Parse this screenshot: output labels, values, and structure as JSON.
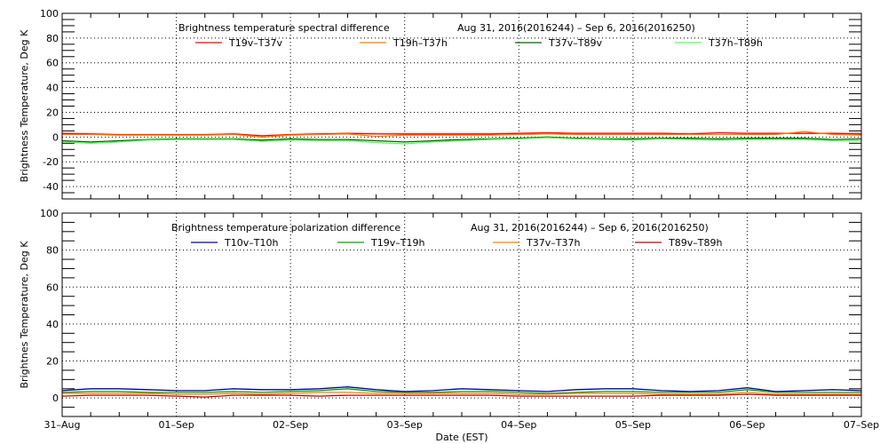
{
  "chart_data": [
    {
      "type": "line",
      "title": "Brightness temperature spectral difference",
      "date_range": "Aug 31, 2016(2016244) – Sep  6, 2016(2016250)",
      "ylabel": "Brightness Temperature, Deg K",
      "xlabel": "",
      "ylim": [
        -50,
        100
      ],
      "yticks": [
        -40,
        -20,
        0,
        20,
        40,
        60,
        80,
        100
      ],
      "xlim": [
        0,
        7
      ],
      "grid": true,
      "legend_position": "top",
      "x_hours_step": 6,
      "series": [
        {
          "name": "T19v–T37v",
          "color": "#ff0000",
          "values": [
            3,
            2.5,
            2,
            2,
            2,
            2,
            2.5,
            1,
            2,
            2.5,
            3,
            2.5,
            2.5,
            2.5,
            2.5,
            2.5,
            3,
            3.5,
            3,
            3,
            3,
            3,
            2.5,
            3.5,
            3,
            3,
            3,
            3,
            2.5
          ]
        },
        {
          "name": "T19h–T37h",
          "color": "#ff7f00",
          "values": [
            2,
            2,
            1.5,
            1.5,
            1.5,
            1.5,
            2,
            0,
            1.5,
            2,
            2.5,
            0.5,
            1.5,
            1.5,
            1.5,
            1.5,
            2,
            2.5,
            2,
            2,
            2,
            2,
            2,
            2,
            2,
            2,
            4.5,
            2,
            1.5
          ]
        },
        {
          "name": "T37v–T89v",
          "color": "#006400",
          "values": [
            -3,
            -4,
            -3,
            -2,
            -1.5,
            -1.5,
            -1.5,
            -2.5,
            -1.5,
            -2,
            -2,
            -3,
            -4,
            -3,
            -2,
            -1.5,
            -1,
            0,
            -1,
            -1.5,
            -1.5,
            -1,
            -1,
            -1.5,
            -1,
            -1,
            -1,
            -2,
            -1.5
          ]
        },
        {
          "name": "T37h–T89h",
          "color": "#55ff55",
          "values": [
            -4,
            -5,
            -4,
            -2.5,
            -2,
            -2,
            -2,
            -3.5,
            -2.5,
            -3,
            -3,
            -4.5,
            -5.5,
            -4,
            -3,
            -2,
            -1.5,
            -0.5,
            -1.5,
            -2,
            -2.5,
            -1.5,
            -2,
            -2.5,
            -2,
            -2,
            -2,
            -3,
            -3
          ]
        }
      ]
    },
    {
      "type": "line",
      "title": "Brightness temperature polarization difference",
      "date_range": "Aug 31, 2016(2016244) – Sep  6, 2016(2016250)",
      "ylabel": "Brightnes Temperature, Deg K",
      "xlabel": "Date (EST)",
      "ylim": [
        -10,
        100
      ],
      "yticks": [
        0,
        20,
        40,
        60,
        80,
        100
      ],
      "xticks": [
        "31–Aug",
        "01–Sep",
        "02–Sep",
        "03–Sep",
        "04–Sep",
        "05–Sep",
        "06–Sep",
        "07–Sep"
      ],
      "xlim": [
        0,
        7
      ],
      "grid": true,
      "legend_position": "top",
      "x_hours_step": 6,
      "series": [
        {
          "name": "T10v–T10h",
          "color": "#0000b0",
          "values": [
            4,
            5,
            5,
            4.5,
            4,
            4,
            5,
            4.5,
            4.5,
            5,
            6,
            4.5,
            3.5,
            4,
            5,
            4.5,
            4,
            3.5,
            4.5,
            5,
            5,
            4,
            3.5,
            4,
            5.5,
            3.5,
            4,
            4.5,
            4
          ]
        },
        {
          "name": "T19v–T19h",
          "color": "#00a000",
          "values": [
            3,
            3.5,
            3.5,
            3,
            3,
            3,
            3.5,
            3,
            3.5,
            4,
            5,
            3.5,
            3,
            3,
            3.5,
            3.5,
            3,
            2.5,
            3,
            3.5,
            3.5,
            3,
            3,
            3,
            4.5,
            3,
            3,
            3,
            3
          ]
        },
        {
          "name": "T37v–T37h",
          "color": "#ff8000",
          "values": [
            2.5,
            2.5,
            2.5,
            2.5,
            2,
            2,
            2.5,
            2,
            2.5,
            3,
            3,
            2.5,
            2.5,
            2.5,
            2.5,
            2.5,
            2,
            2,
            2.5,
            2.5,
            2.5,
            2,
            2,
            2,
            3,
            2,
            2,
            2,
            2
          ]
        },
        {
          "name": "T89v–T89h",
          "color": "#c00000",
          "values": [
            1,
            1.5,
            1.5,
            1.5,
            1,
            0.5,
            1.5,
            1.5,
            1.5,
            1,
            1.5,
            1.5,
            1.5,
            1.5,
            1.5,
            1.5,
            1,
            1,
            1,
            1,
            1,
            1.5,
            1.5,
            1.5,
            2,
            1.5,
            1.5,
            1.5,
            1.5
          ]
        }
      ]
    }
  ]
}
